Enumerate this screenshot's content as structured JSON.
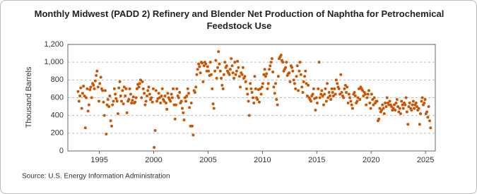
{
  "chart_data": {
    "type": "scatter",
    "title": "Monthly Midwest (PADD 2) Refinery and Blender Net Production of Naphtha for Petrochemical Feedstock Use",
    "ylabel": "Thousand Barrels",
    "source": "Source: U.S. Energy Information Administration",
    "color": "#cc5500",
    "grid": true,
    "xlim": [
      1992.1,
      2025.9
    ],
    "xticks": [
      1995,
      2000,
      2005,
      2010,
      2015,
      2020,
      2025
    ],
    "ylim": [
      0,
      1200
    ],
    "yticks": [
      0,
      200,
      400,
      600,
      800,
      {
        "value": 1000,
        "label": "1,000"
      },
      {
        "value": 1200,
        "label": "1,200"
      }
    ],
    "x": [
      1993.04,
      1993.13,
      1993.21,
      1993.29,
      1993.38,
      1993.46,
      1993.54,
      1993.63,
      1993.71,
      1993.79,
      1993.88,
      1993.96,
      1994.04,
      1994.13,
      1994.21,
      1994.29,
      1994.38,
      1994.46,
      1994.54,
      1994.63,
      1994.71,
      1994.79,
      1994.88,
      1994.96,
      1995.04,
      1995.13,
      1995.21,
      1995.29,
      1995.38,
      1995.46,
      1995.54,
      1995.63,
      1995.71,
      1995.79,
      1995.88,
      1995.96,
      1996.04,
      1996.13,
      1996.21,
      1996.29,
      1996.38,
      1996.46,
      1996.54,
      1996.63,
      1996.71,
      1996.79,
      1996.88,
      1996.96,
      1997.04,
      1997.13,
      1997.21,
      1997.29,
      1997.38,
      1997.46,
      1997.54,
      1997.63,
      1997.71,
      1997.79,
      1997.88,
      1997.96,
      1998.04,
      1998.13,
      1998.21,
      1998.29,
      1998.38,
      1998.46,
      1998.54,
      1998.63,
      1998.71,
      1998.79,
      1998.88,
      1998.96,
      1999.04,
      1999.13,
      1999.21,
      1999.29,
      1999.38,
      1999.46,
      1999.54,
      1999.63,
      1999.71,
      1999.79,
      1999.88,
      1999.96,
      2000.04,
      2000.13,
      2000.21,
      2000.29,
      2000.38,
      2000.46,
      2000.54,
      2000.63,
      2000.71,
      2000.79,
      2000.88,
      2000.96,
      2001.04,
      2001.13,
      2001.21,
      2001.29,
      2001.38,
      2001.46,
      2001.54,
      2001.63,
      2001.71,
      2001.79,
      2001.88,
      2001.96,
      2002.04,
      2002.13,
      2002.21,
      2002.29,
      2002.38,
      2002.46,
      2002.54,
      2002.63,
      2002.71,
      2002.79,
      2002.88,
      2002.96,
      2003.04,
      2003.13,
      2003.21,
      2003.29,
      2003.38,
      2003.46,
      2003.54,
      2003.63,
      2003.71,
      2003.79,
      2003.88,
      2003.96,
      2004.04,
      2004.13,
      2004.21,
      2004.29,
      2004.38,
      2004.46,
      2004.54,
      2004.63,
      2004.71,
      2004.79,
      2004.88,
      2004.96,
      2005.04,
      2005.13,
      2005.21,
      2005.29,
      2005.38,
      2005.46,
      2005.54,
      2005.63,
      2005.71,
      2005.79,
      2005.88,
      2005.96,
      2006.04,
      2006.13,
      2006.21,
      2006.29,
      2006.38,
      2006.46,
      2006.54,
      2006.63,
      2006.71,
      2006.79,
      2006.88,
      2006.96,
      2007.04,
      2007.13,
      2007.21,
      2007.29,
      2007.38,
      2007.46,
      2007.54,
      2007.63,
      2007.71,
      2007.79,
      2007.88,
      2007.96,
      2008.04,
      2008.13,
      2008.21,
      2008.29,
      2008.38,
      2008.46,
      2008.54,
      2008.63,
      2008.71,
      2008.79,
      2008.88,
      2008.96,
      2009.04,
      2009.13,
      2009.21,
      2009.29,
      2009.38,
      2009.46,
      2009.54,
      2009.63,
      2009.71,
      2009.79,
      2009.88,
      2009.96,
      2010.04,
      2010.13,
      2010.21,
      2010.29,
      2010.38,
      2010.46,
      2010.54,
      2010.63,
      2010.71,
      2010.79,
      2010.88,
      2010.96,
      2011.04,
      2011.13,
      2011.21,
      2011.29,
      2011.38,
      2011.46,
      2011.54,
      2011.63,
      2011.71,
      2011.79,
      2011.88,
      2011.96,
      2012.04,
      2012.13,
      2012.21,
      2012.29,
      2012.38,
      2012.46,
      2012.54,
      2012.63,
      2012.71,
      2012.79,
      2012.88,
      2012.96,
      2013.04,
      2013.13,
      2013.21,
      2013.29,
      2013.38,
      2013.46,
      2013.54,
      2013.63,
      2013.71,
      2013.79,
      2013.88,
      2013.96,
      2014.04,
      2014.13,
      2014.21,
      2014.29,
      2014.38,
      2014.46,
      2014.54,
      2014.63,
      2014.71,
      2014.79,
      2014.88,
      2014.96,
      2015.04,
      2015.13,
      2015.21,
      2015.29,
      2015.38,
      2015.46,
      2015.54,
      2015.63,
      2015.71,
      2015.79,
      2015.88,
      2015.96,
      2016.04,
      2016.13,
      2016.21,
      2016.29,
      2016.38,
      2016.46,
      2016.54,
      2016.63,
      2016.71,
      2016.79,
      2016.88,
      2016.96,
      2017.04,
      2017.13,
      2017.21,
      2017.29,
      2017.38,
      2017.46,
      2017.54,
      2017.63,
      2017.71,
      2017.79,
      2017.88,
      2017.96,
      2018.04,
      2018.13,
      2018.21,
      2018.29,
      2018.38,
      2018.46,
      2018.54,
      2018.63,
      2018.71,
      2018.79,
      2018.88,
      2018.96,
      2019.04,
      2019.13,
      2019.21,
      2019.29,
      2019.38,
      2019.46,
      2019.54,
      2019.63,
      2019.71,
      2019.79,
      2019.88,
      2019.96,
      2020.04,
      2020.13,
      2020.21,
      2020.29,
      2020.38,
      2020.46,
      2020.54,
      2020.63,
      2020.71,
      2020.79,
      2020.88,
      2020.96,
      2021.04,
      2021.13,
      2021.21,
      2021.29,
      2021.38,
      2021.46,
      2021.54,
      2021.63,
      2021.71,
      2021.79,
      2021.88,
      2021.96,
      2022.04,
      2022.13,
      2022.21,
      2022.29,
      2022.38,
      2022.46,
      2022.54,
      2022.63,
      2022.71,
      2022.79,
      2022.88,
      2022.96,
      2023.04,
      2023.13,
      2023.21,
      2023.29,
      2023.38,
      2023.46,
      2023.54,
      2023.63,
      2023.71,
      2023.79,
      2023.88,
      2023.96,
      2024.04,
      2024.13,
      2024.21,
      2024.29,
      2024.38,
      2024.46,
      2024.54,
      2024.63,
      2024.71,
      2024.79,
      2024.88,
      2024.96,
      2025.04,
      2025.13,
      2025.21,
      2025.29,
      2025.38,
      2025.46
    ],
    "values": [
      670,
      560,
      620,
      710,
      480,
      650,
      730,
      620,
      260,
      600,
      700,
      450,
      520,
      690,
      720,
      600,
      760,
      740,
      700,
      790,
      850,
      900,
      720,
      560,
      760,
      830,
      700,
      680,
      550,
      400,
      680,
      190,
      520,
      580,
      500,
      620,
      340,
      280,
      520,
      560,
      700,
      640,
      590,
      560,
      420,
      710,
      780,
      620,
      560,
      680,
      530,
      720,
      620,
      700,
      430,
      560,
      580,
      700,
      640,
      540,
      570,
      610,
      540,
      550,
      600,
      700,
      750,
      720,
      760,
      800,
      600,
      780,
      700,
      650,
      520,
      560,
      620,
      680,
      720,
      640,
      580,
      600,
      550,
      700,
      40,
      230,
      680,
      560,
      590,
      650,
      600,
      540,
      620,
      700,
      580,
      560,
      620,
      540,
      470,
      650,
      600,
      580,
      560,
      640,
      600,
      700,
      520,
      360,
      520,
      700,
      620,
      600,
      660,
      540,
      560,
      480,
      430,
      350,
      600,
      560,
      620,
      700,
      650,
      490,
      280,
      540,
      280,
      180,
      680,
      660,
      720,
      860,
      920,
      980,
      950,
      880,
      1000,
      990,
      780,
      960,
      1000,
      980,
      900,
      950,
      900,
      850,
      1000,
      860,
      700,
      530,
      480,
      900,
      1020,
      820,
      940,
      1120,
      980,
      900,
      820,
      740,
      700,
      860,
      1000,
      940,
      960,
      900,
      880,
      860,
      920,
      1040,
      960,
      880,
      820,
      1000,
      860,
      900,
      1010,
      940,
      840,
      720,
      880,
      860,
      940,
      820,
      840,
      780,
      700,
      640,
      560,
      400,
      760,
      700,
      660,
      600,
      540,
      840,
      700,
      600,
      580,
      690,
      550,
      700,
      640,
      720,
      760,
      860,
      920,
      840,
      870,
      700,
      760,
      920,
      960,
      1000,
      1040,
      890,
      720,
      650,
      760,
      580,
      520,
      840,
      1040,
      1060,
      1080,
      1020,
      1000,
      900,
      920,
      940,
      1000,
      850,
      870,
      880,
      780,
      960,
      940,
      900,
      800,
      760,
      700,
      840,
      960,
      680,
      900,
      1000,
      860,
      720,
      660,
      780,
      840,
      900,
      760,
      620,
      740,
      600,
      580,
      560,
      620,
      640,
      700,
      590,
      460,
      600,
      540,
      700,
      1000,
      600,
      640,
      680,
      620,
      520,
      640,
      700,
      560,
      760,
      600,
      660,
      620,
      580,
      700,
      660,
      620,
      700,
      640,
      800,
      760,
      720,
      700,
      640,
      860,
      660,
      620,
      600,
      700,
      740,
      660,
      720,
      540,
      640,
      600,
      560,
      520,
      480,
      640,
      660,
      620,
      540,
      560,
      600,
      700,
      580,
      720,
      700,
      680,
      620,
      660,
      640,
      520,
      600,
      640,
      680,
      540,
      480,
      640,
      580,
      520,
      600,
      540,
      560,
      560,
      340,
      360,
      480,
      440,
      460,
      520,
      480,
      420,
      540,
      500,
      600,
      540,
      520,
      560,
      520,
      500,
      460,
      480,
      520,
      460,
      540,
      580,
      500,
      440,
      480,
      420,
      560,
      520,
      480,
      540,
      520,
      600,
      440,
      300,
      500,
      540,
      480,
      460,
      520,
      560,
      480,
      520,
      540,
      500,
      460,
      480,
      300,
      420,
      560,
      600,
      520,
      540,
      580,
      420,
      440,
      380,
      500,
      340,
      260
    ]
  }
}
